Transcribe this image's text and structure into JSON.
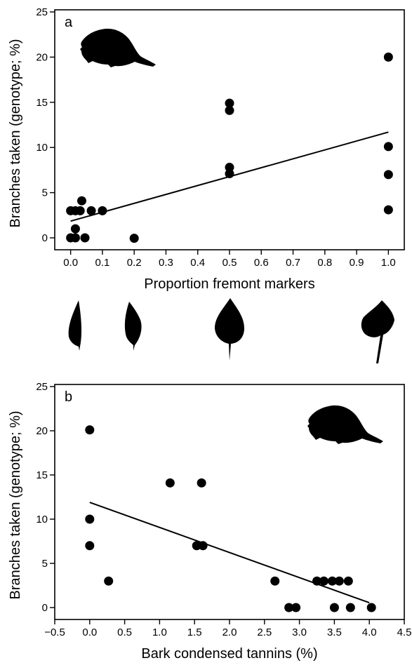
{
  "chart_data": [
    {
      "type": "scatter",
      "panel_label": "a",
      "xlabel": "Proportion fremont markers",
      "ylabel": "Branches taken (genotype; %)",
      "xlim": [
        -0.05,
        1.05
      ],
      "ylim": [
        0,
        25
      ],
      "xticks": [
        0.0,
        0.1,
        0.2,
        0.3,
        0.4,
        0.5,
        0.6,
        0.7,
        0.8,
        0.9,
        1.0
      ],
      "xtick_labels": [
        "0.0",
        "0.1",
        "0.2",
        "0.3",
        "0.4",
        "0.5",
        "0.6",
        "0.7",
        "0.8",
        "0.9",
        "1.0"
      ],
      "yticks": [
        0,
        5,
        10,
        15,
        20,
        25
      ],
      "ytick_labels": [
        "0",
        "5",
        "10",
        "15",
        "20",
        "25"
      ],
      "points": [
        [
          0.0,
          3
        ],
        [
          0.015,
          3
        ],
        [
          0.03,
          3
        ],
        [
          0.035,
          4.1
        ],
        [
          0.065,
          3
        ],
        [
          0.1,
          3
        ],
        [
          0.0,
          0
        ],
        [
          0.015,
          0
        ],
        [
          0.045,
          0
        ],
        [
          0.015,
          1
        ],
        [
          0.2,
          -0.05
        ],
        [
          0.5,
          14.9
        ],
        [
          0.5,
          14.1
        ],
        [
          0.5,
          7.8
        ],
        [
          0.5,
          7.1
        ],
        [
          1.0,
          20
        ],
        [
          1.0,
          10.1
        ],
        [
          1.0,
          7
        ],
        [
          1.0,
          3.1
        ]
      ],
      "fit_line": [
        [
          0.0,
          1.85
        ],
        [
          1.0,
          11.7
        ]
      ]
    },
    {
      "type": "scatter",
      "panel_label": "b",
      "xlabel": "Bark condensed tannins (%)",
      "ylabel": "Branches taken (genotype; %)",
      "xlim": [
        -0.5,
        4.5
      ],
      "ylim": [
        0,
        25
      ],
      "xticks": [
        -0.5,
        0.0,
        0.5,
        1.0,
        1.5,
        2.0,
        2.5,
        3.0,
        3.5,
        4.0,
        4.5
      ],
      "xtick_labels": [
        "−0.5",
        "0.0",
        "0.5",
        "1.0",
        "1.5",
        "2.0",
        "2.5",
        "3.0",
        "3.5",
        "4.0",
        "4.5"
      ],
      "yticks": [
        0,
        5,
        10,
        15,
        20,
        25
      ],
      "ytick_labels": [
        "0",
        "5",
        "10",
        "15",
        "20",
        "25"
      ],
      "points": [
        [
          0.0,
          20.1
        ],
        [
          0.0,
          10.0
        ],
        [
          0.0,
          7.0
        ],
        [
          0.27,
          3.0
        ],
        [
          1.15,
          14.1
        ],
        [
          1.6,
          14.1
        ],
        [
          1.53,
          7.0
        ],
        [
          1.62,
          7.0
        ],
        [
          2.65,
          3.0
        ],
        [
          2.85,
          0
        ],
        [
          2.95,
          0
        ],
        [
          3.25,
          3.0
        ],
        [
          3.35,
          3.0
        ],
        [
          3.47,
          3.0
        ],
        [
          3.57,
          3.0
        ],
        [
          3.7,
          3.0
        ],
        [
          3.5,
          0
        ],
        [
          3.73,
          0
        ],
        [
          4.03,
          0
        ]
      ],
      "fit_line": [
        [
          0.0,
          11.9
        ],
        [
          4.0,
          0.55
        ]
      ]
    }
  ],
  "figure": {
    "leaf_icons": [
      "narrowleaf-leaf",
      "narrowleaf-leaf",
      "intermediate-leaf",
      "fremont-leaf"
    ],
    "animal_icon": "beaver-silhouette"
  }
}
